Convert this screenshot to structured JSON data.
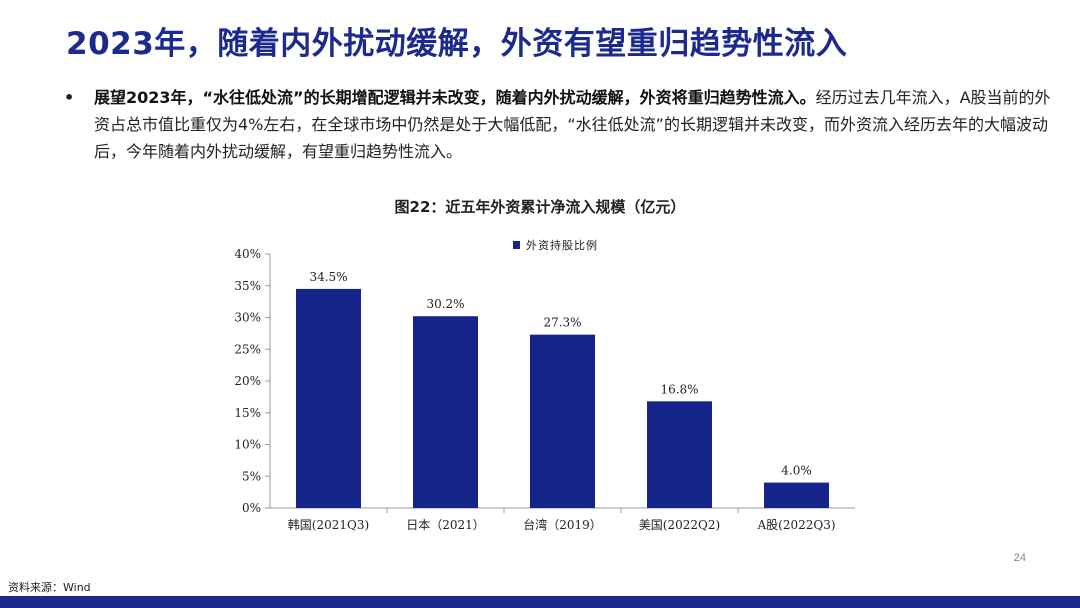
{
  "slide": {
    "title": "2023年，随着内外扰动缓解，外资有望重归趋势性流入",
    "bullet_bold": "展望2023年，“水往低处流”的长期增配逻辑并未改变，随着内外扰动缓解，外资将重归趋势性流入。",
    "bullet_rest": "经历过去几年流入，A股当前的外资占总市值比重仅为4%左右，在全球市场中仍然是处于大幅低配，“水往低处流”的长期逻辑并未改变，而外资流入经历去年的大幅波动后，今年随着内外扰动缓解，有望重归趋势性流入。",
    "bullet_marker": "•",
    "chart_caption": "图22：近五年外资累计净流入规模（亿元）",
    "page_number": "24",
    "source": "资料来源：Wind"
  },
  "colors": {
    "title": "#1b2a8c",
    "bar": "#16258a",
    "footer": "#1b2a8c"
  },
  "chart_data": {
    "type": "bar",
    "categories": [
      "韩国(2021Q3)",
      "日本（2021）",
      "台湾（2019）",
      "美国(2022Q2)",
      "A股(2022Q3)"
    ],
    "series": [
      {
        "name": "外资持股比例",
        "values": [
          34.5,
          30.2,
          27.3,
          16.8,
          4.0
        ]
      }
    ],
    "data_labels": [
      "34.5%",
      "30.2%",
      "27.3%",
      "16.8%",
      "4.0%"
    ],
    "y_ticks": [
      "0%",
      "5%",
      "10%",
      "15%",
      "20%",
      "25%",
      "30%",
      "35%",
      "40%"
    ],
    "ylim": [
      0,
      40
    ],
    "y_step": 5,
    "legend_position": "top-center",
    "grid": false
  }
}
